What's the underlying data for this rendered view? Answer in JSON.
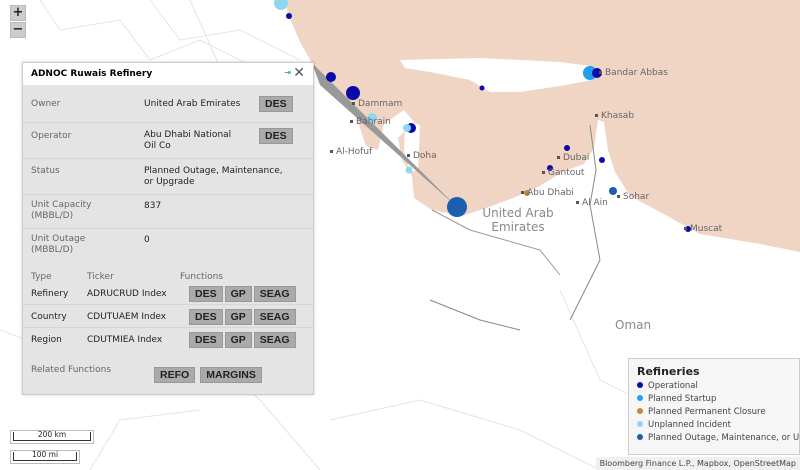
{
  "map": {
    "cities": [
      "Bandar Abbas",
      "Khasab",
      "Dubai",
      "Gantout",
      "Abu Dhabi",
      "Al Ain",
      "Sohar",
      "Muscat",
      "Doha",
      "Al-Hofuf",
      "Dammam",
      "Bahrain"
    ],
    "country_labels": [
      "United Arab\nEmirates",
      "Oman"
    ],
    "zoom_in": "+",
    "zoom_out": "−",
    "scale_km": "200 km",
    "scale_mi": "100 mi",
    "attribution": "Bloomberg Finance L.P., Mapbox, OpenStreetMap",
    "colors": {
      "sea": "#f0d5c4",
      "operational": "#0a0aa8",
      "planned_startup": "#1ea0f0",
      "closure": "#c08a3a",
      "unplanned": "#8fd6ee",
      "outage": "#1a5fb0"
    },
    "markers": [
      {
        "status": "unplanned"
      },
      {
        "status": "operational"
      },
      {
        "status": "operational"
      },
      {
        "status": "operational"
      },
      {
        "status": "operational"
      },
      {
        "status": "planned_startup"
      },
      {
        "status": "operational"
      },
      {
        "status": "unplanned"
      },
      {
        "status": "operational"
      },
      {
        "status": "unplanned"
      },
      {
        "status": "unplanned"
      },
      {
        "status": "outage"
      },
      {
        "status": "operational"
      },
      {
        "status": "operational"
      },
      {
        "status": "operational"
      },
      {
        "status": "outage"
      },
      {
        "status": "closure"
      },
      {
        "status": "operational"
      }
    ]
  },
  "popup": {
    "title": "ADNOC Ruwais Refinery",
    "pin_icon": "pin-icon",
    "close": "✕",
    "owner_label": "Owner",
    "owner": "United Arab Emirates",
    "owner_btn": "DES",
    "operator_label": "Operator",
    "operator": "Abu Dhabi National Oil Co",
    "operator_btn": "DES",
    "status_label": "Status",
    "status": "Planned Outage, Maintenance, or Upgrade",
    "capacity_label": "Unit Capacity (MBBL/D)",
    "capacity": "837",
    "outage_label": "Unit Outage (MBBL/D)",
    "outage": "0",
    "headers": {
      "type": "Type",
      "ticker": "Ticker",
      "functions": "Functions"
    },
    "rows": [
      {
        "type": "Refinery",
        "ticker": "ADRUCRUD Index",
        "f": [
          "DES",
          "GP",
          "SEAG"
        ]
      },
      {
        "type": "Country",
        "ticker": "CDUTUAEM Index",
        "f": [
          "DES",
          "GP",
          "SEAG"
        ]
      },
      {
        "type": "Region",
        "ticker": "CDUTMIEA Index",
        "f": [
          "DES",
          "GP",
          "SEAG"
        ]
      }
    ],
    "related_label": "Related Functions",
    "related": [
      "REFO",
      "MARGINS"
    ]
  },
  "legend": {
    "title": "Refineries",
    "items": [
      {
        "label": "Operational",
        "color": "#0a0aa8"
      },
      {
        "label": "Planned Startup",
        "color": "#1ea0f0"
      },
      {
        "label": "Planned Permanent Closure",
        "color": "#c08a3a"
      },
      {
        "label": "Unplanned Incident",
        "color": "#8fd6ee"
      },
      {
        "label": "Planned Outage, Maintenance, or Upgrade",
        "color": "#1a5fb0"
      }
    ]
  }
}
